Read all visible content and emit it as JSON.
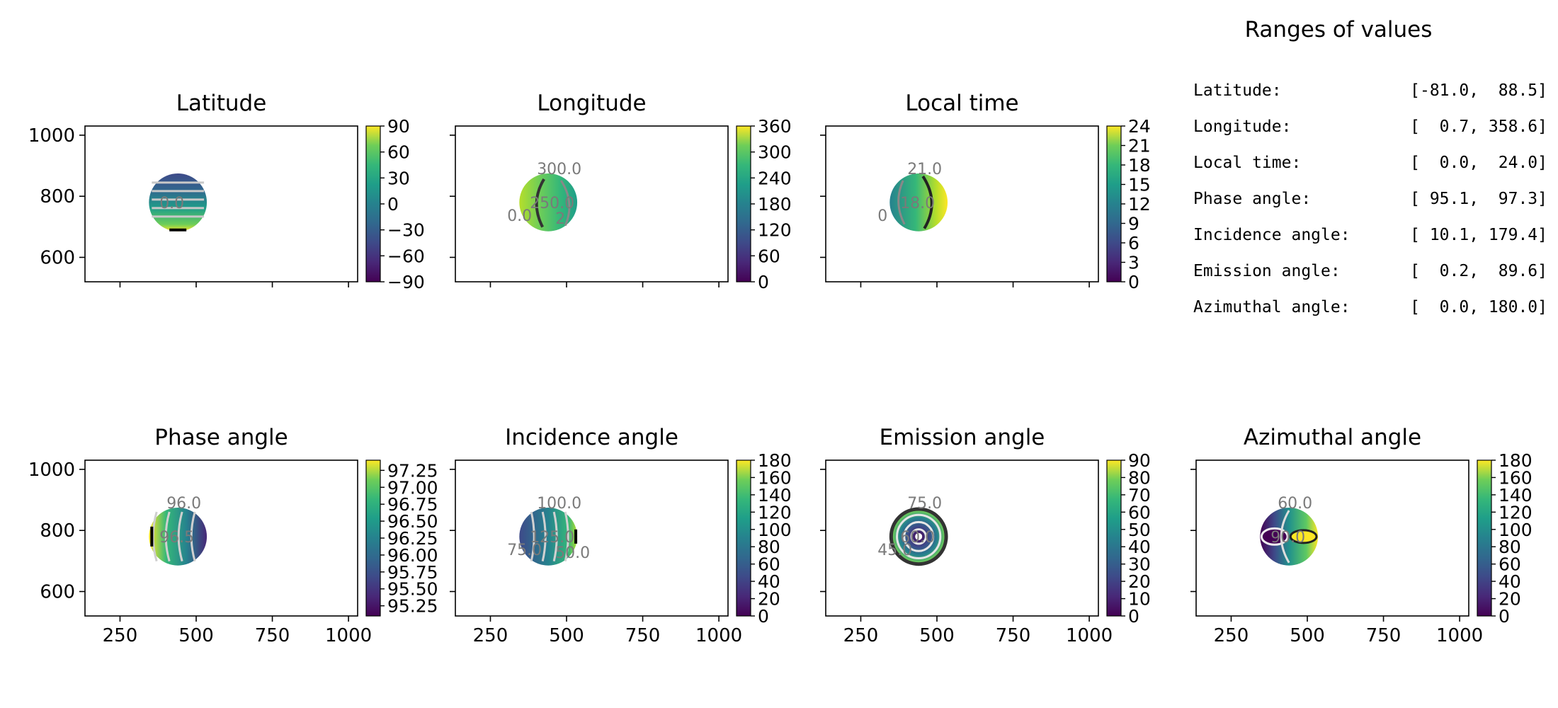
{
  "panels": [
    {
      "id": "latitude",
      "title": "Latitude",
      "cbar_ticks": [
        "90",
        "60",
        "30",
        "0",
        "−30",
        "−60",
        "−90"
      ],
      "cbar_range": [
        -90,
        90
      ],
      "contour_labels": [
        "0.0"
      ],
      "field": "lat"
    },
    {
      "id": "longitude",
      "title": "Longitude",
      "cbar_ticks": [
        "360",
        "300",
        "240",
        "180",
        "120",
        "60",
        "0"
      ],
      "cbar_range": [
        0,
        360
      ],
      "contour_labels": [
        "250.0",
        "300.0",
        "0.0",
        "2"
      ],
      "field": "lon"
    },
    {
      "id": "local_time",
      "title": "Local time",
      "cbar_ticks": [
        "24",
        "21",
        "18",
        "15",
        "12",
        "9",
        "6",
        "3",
        "0"
      ],
      "cbar_range": [
        0,
        24
      ],
      "contour_labels": [
        "18.0",
        "21.0",
        "0"
      ],
      "field": "lt"
    },
    {
      "id": "phase_angle",
      "title": "Phase angle",
      "cbar_ticks": [
        "97.25",
        "97.00",
        "96.75",
        "96.50",
        "96.25",
        "96.00",
        "95.75",
        "95.50",
        "95.25"
      ],
      "cbar_range": [
        95.1,
        97.4
      ],
      "contour_labels": [
        "96.5",
        "96.0"
      ],
      "field": "phase"
    },
    {
      "id": "incidence_angle",
      "title": "Incidence angle",
      "cbar_ticks": [
        "180",
        "160",
        "140",
        "120",
        "100",
        "80",
        "60",
        "40",
        "20",
        "0"
      ],
      "cbar_range": [
        0,
        180
      ],
      "contour_labels": [
        "125.0",
        "100.0",
        "75.0",
        "50.0"
      ],
      "field": "inc"
    },
    {
      "id": "emission_angle",
      "title": "Emission angle",
      "cbar_ticks": [
        "90",
        "80",
        "70",
        "60",
        "50",
        "40",
        "30",
        "20",
        "10",
        "0"
      ],
      "cbar_range": [
        0,
        90
      ],
      "contour_labels": [
        "60.0",
        "75.0",
        "45.0"
      ],
      "field": "emi"
    },
    {
      "id": "azimuthal_angle",
      "title": "Azimuthal angle",
      "cbar_ticks": [
        "180",
        "160",
        "140",
        "120",
        "100",
        "80",
        "60",
        "40",
        "20",
        "0"
      ],
      "cbar_range": [
        0,
        180
      ],
      "contour_labels": [
        "90.0",
        "60.0"
      ],
      "field": "azi"
    }
  ],
  "axes": {
    "x_ticks": [
      "250",
      "500",
      "750",
      "1000"
    ],
    "y_ticks": [
      "1000",
      "800",
      "600"
    ]
  },
  "ranges": {
    "title": "Ranges of values",
    "rows": [
      {
        "label": "Latitude:",
        "value": "[-81.0,  88.5]"
      },
      {
        "label": "Longitude:",
        "value": "[  0.7, 358.6]"
      },
      {
        "label": "Local time:",
        "value": "[  0.0,  24.0]"
      },
      {
        "label": "Phase angle:",
        "value": "[ 95.1,  97.3]"
      },
      {
        "label": "Incidence angle:",
        "value": "[ 10.1, 179.4]"
      },
      {
        "label": "Emission angle:",
        "value": "[  0.2,  89.6]"
      },
      {
        "label": "Azimuthal angle:",
        "value": "[  0.0, 180.0]"
      }
    ]
  },
  "chart_data": [
    {
      "type": "heatmap",
      "title": "Latitude",
      "xlim": [
        135,
        1030
      ],
      "ylim": [
        520,
        1030
      ],
      "colormap": "viridis",
      "colorbar_range": [
        -90,
        90
      ],
      "disc_center": [
        440,
        780
      ],
      "disc_radius": 95
    },
    {
      "type": "heatmap",
      "title": "Longitude",
      "xlim": [
        135,
        1030
      ],
      "ylim": [
        520,
        1030
      ],
      "colormap": "viridis",
      "colorbar_range": [
        0,
        360
      ],
      "disc_center": [
        440,
        780
      ],
      "disc_radius": 95
    },
    {
      "type": "heatmap",
      "title": "Local time",
      "xlim": [
        135,
        1030
      ],
      "ylim": [
        520,
        1030
      ],
      "colormap": "viridis",
      "colorbar_range": [
        0,
        24
      ],
      "disc_center": [
        440,
        780
      ],
      "disc_radius": 95
    },
    {
      "type": "heatmap",
      "title": "Phase angle",
      "xlim": [
        135,
        1030
      ],
      "ylim": [
        520,
        1030
      ],
      "colormap": "viridis",
      "colorbar_range": [
        95.1,
        97.4
      ],
      "disc_center": [
        440,
        780
      ],
      "disc_radius": 95
    },
    {
      "type": "heatmap",
      "title": "Incidence angle",
      "xlim": [
        135,
        1030
      ],
      "ylim": [
        520,
        1030
      ],
      "colormap": "viridis",
      "colorbar_range": [
        0,
        180
      ],
      "disc_center": [
        440,
        780
      ],
      "disc_radius": 95
    },
    {
      "type": "heatmap",
      "title": "Emission angle",
      "xlim": [
        135,
        1030
      ],
      "ylim": [
        520,
        1030
      ],
      "colormap": "viridis",
      "colorbar_range": [
        0,
        90
      ],
      "disc_center": [
        440,
        780
      ],
      "disc_radius": 95
    },
    {
      "type": "heatmap",
      "title": "Azimuthal angle",
      "xlim": [
        135,
        1030
      ],
      "ylim": [
        520,
        1030
      ],
      "colormap": "viridis",
      "colorbar_range": [
        0,
        180
      ],
      "disc_center": [
        440,
        780
      ],
      "disc_radius": 95
    }
  ]
}
